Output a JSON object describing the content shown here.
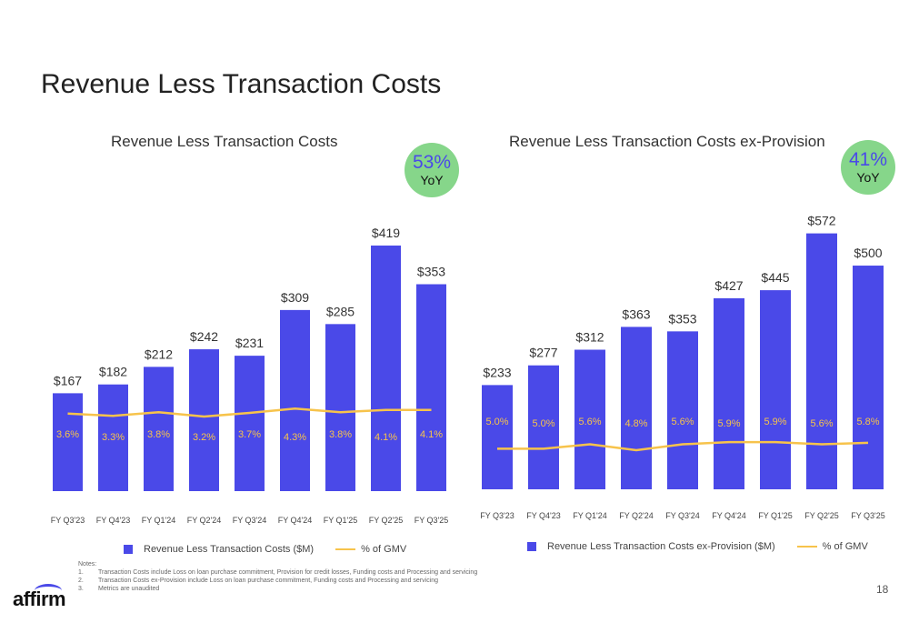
{
  "page": {
    "title": "Revenue Less Transaction Costs",
    "page_number": "18",
    "logo": "affirm"
  },
  "colors": {
    "bar": "#4a49e8",
    "line": "#f7c34b",
    "badge": "#86d68a"
  },
  "badges": [
    {
      "pct": "53%",
      "label": "YoY"
    },
    {
      "pct": "41%",
      "label": "YoY"
    }
  ],
  "legends": [
    {
      "series": "Revenue Less Transaction Costs ($M)",
      "line": "% of GMV"
    },
    {
      "series": "Revenue Less Transaction Costs ex-Provision ($M)",
      "line": "% of GMV"
    }
  ],
  "notes": {
    "heading": "Notes:",
    "items": [
      {
        "num": "1.",
        "text": "Transaction Costs include Loss on loan purchase commitment, Provision for credit losses, Funding costs and Processing and servicing"
      },
      {
        "num": "2.",
        "text": "Transaction Costs ex-Provision include Loss on loan purchase commitment, Funding costs and Processing and servicing"
      },
      {
        "num": "3.",
        "text": "Metrics are unaudited"
      }
    ]
  },
  "chart_data": [
    {
      "type": "bar",
      "title": "Revenue Less Transaction Costs",
      "categories": [
        "FY Q3'23",
        "FY Q4'23",
        "FY Q1'24",
        "FY Q2'24",
        "FY Q3'24",
        "FY Q4'24",
        "FY Q1'25",
        "FY Q2'25",
        "FY Q3'25"
      ],
      "series": [
        {
          "name": "Revenue Less Transaction Costs ($M)",
          "type": "bar",
          "values": [
            167,
            182,
            212,
            242,
            231,
            309,
            285,
            419,
            353
          ],
          "labels": [
            "$167",
            "$182",
            "$212",
            "$242",
            "$231",
            "$309",
            "$285",
            "$419",
            "$353"
          ]
        },
        {
          "name": "% of GMV",
          "type": "line",
          "values": [
            3.6,
            3.3,
            3.8,
            3.2,
            3.7,
            4.3,
            3.8,
            4.1,
            4.1
          ],
          "labels": [
            "3.6%",
            "3.3%",
            "3.8%",
            "3.2%",
            "3.7%",
            "4.3%",
            "3.8%",
            "4.1%",
            "4.1%"
          ]
        }
      ],
      "ylim": [
        0,
        450
      ],
      "xlabel": "",
      "ylabel": "",
      "legend_position": "bottom"
    },
    {
      "type": "bar",
      "title": "Revenue Less Transaction Costs ex-Provision",
      "categories": [
        "FY Q3'23",
        "FY Q4'23",
        "FY Q1'24",
        "FY Q2'24",
        "FY Q3'24",
        "FY Q4'24",
        "FY Q1'25",
        "FY Q2'25",
        "FY Q3'25"
      ],
      "series": [
        {
          "name": "Revenue Less Transaction Costs ex-Provision ($M)",
          "type": "bar",
          "values": [
            233,
            277,
            312,
            363,
            353,
            427,
            445,
            572,
            500
          ],
          "labels": [
            "$233",
            "$277",
            "$312",
            "$363",
            "$353",
            "$427",
            "$445",
            "$572",
            "$500"
          ]
        },
        {
          "name": "% of GMV",
          "type": "line",
          "values": [
            5.0,
            5.0,
            5.6,
            4.8,
            5.6,
            5.9,
            5.9,
            5.6,
            5.8
          ],
          "labels": [
            "5.0%",
            "5.0%",
            "5.6%",
            "4.8%",
            "5.6%",
            "5.9%",
            "5.9%",
            "5.6%",
            "5.8%"
          ]
        }
      ],
      "ylim": [
        0,
        620
      ],
      "xlabel": "",
      "ylabel": "",
      "legend_position": "bottom"
    }
  ]
}
